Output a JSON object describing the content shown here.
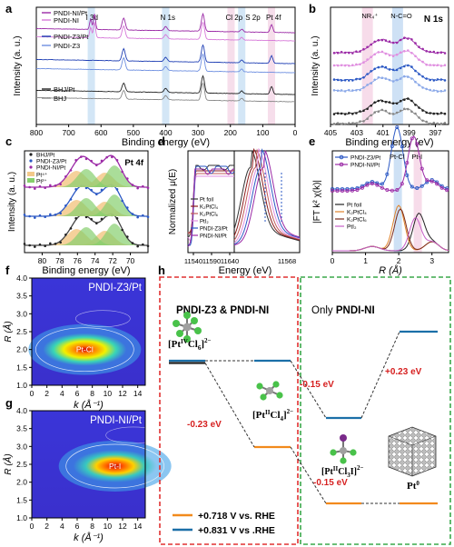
{
  "chart_data": [
    {
      "panel": "a",
      "type": "line",
      "xlabel": "Binding energy (eV)",
      "ylabel": "Intensity (a. u.)",
      "xlim": [
        800,
        0
      ],
      "xticks": [
        800,
        700,
        600,
        500,
        400,
        300,
        200,
        100,
        0
      ],
      "peak_labels": [
        "I 3d",
        "N 1s",
        "Cl 2p",
        "S 2p",
        "Pt 4f"
      ],
      "peak_positions": [
        630,
        400,
        198,
        165,
        73
      ],
      "series": [
        {
          "name": "PNDI-NI/Pt",
          "color": "#9b2aa6"
        },
        {
          "name": "PNDI-NI",
          "color": "#d77ad9"
        },
        {
          "name": "PNDI-Z3/Pt",
          "color": "#1f3fb4"
        },
        {
          "name": "PNDI-Z3",
          "color": "#6e8fe0"
        },
        {
          "name": "BHJ/Pt",
          "color": "#222222"
        },
        {
          "name": "BHJ",
          "color": "#888888"
        }
      ]
    },
    {
      "panel": "b",
      "type": "line",
      "title": "N 1s",
      "xlabel": "Binding energy (eV)",
      "ylabel": "Intensity (a. u.)",
      "xlim": [
        405,
        396
      ],
      "xticks": [
        405,
        403,
        401,
        399,
        397
      ],
      "peak_labels": [
        "NR₄⁺",
        "N-C=O"
      ],
      "peak_positions": [
        402.0,
        399.7
      ]
    },
    {
      "panel": "c",
      "type": "line",
      "title": "Pt 4f",
      "xlabel": "Binding energy (eV)",
      "ylabel": "Intensity (a. u.)",
      "xlim": [
        82,
        68
      ],
      "xticks": [
        80,
        78,
        76,
        74,
        72,
        70
      ],
      "series": [
        {
          "name": "BHJ/Pt",
          "color": "#222222"
        },
        {
          "name": "PNDI-Z3/Pt",
          "color": "#2b58c4"
        },
        {
          "name": "PNDI-NI/Pt",
          "color": "#9b2aa6"
        },
        {
          "name": "Pt⁴⁺",
          "color": "#f3c98a"
        },
        {
          "name": "Pt²⁺",
          "color": "#86cf6d"
        }
      ]
    },
    {
      "panel": "d",
      "type": "line",
      "xlabel": "Energy (eV)",
      "ylabel": "Normalized μ(E)",
      "xticks_left": [
        11540,
        11590,
        11640
      ],
      "xticks_right": [
        11568
      ],
      "series": [
        {
          "name": "Pt foil",
          "color": "#333333"
        },
        {
          "name": "K₂PtCl₄",
          "color": "#8a1b1b"
        },
        {
          "name": "K₂PtCl₆",
          "color": "#c25a5a"
        },
        {
          "name": "PtI₂",
          "color": "#e08fe0"
        },
        {
          "name": "PNDI-Z3/Pt",
          "color": "#2b58c4"
        },
        {
          "name": "PNDI-NI/Pt",
          "color": "#9b2aa6"
        }
      ]
    },
    {
      "panel": "e",
      "type": "line",
      "xlabel": "R (Å)",
      "ylabel": "|FT k² χ(k)|",
      "xlim": [
        0,
        3.5
      ],
      "xticks": [
        0,
        1,
        2,
        3
      ],
      "peak_labels": [
        "Pt-Cl",
        "Pt-I"
      ],
      "series": [
        {
          "name": "PNDI-Z3/Pt",
          "color": "#2b58c4"
        },
        {
          "name": "PNDI-NI/Pt",
          "color": "#9b2aa6"
        },
        {
          "name": "Pt foil",
          "color": "#222222"
        },
        {
          "name": "K₂PtCl₄",
          "color": "#e0832a"
        },
        {
          "name": "K₂PtCl₆",
          "color": "#7a2a1a"
        },
        {
          "name": "PtI₂",
          "color": "#c65fc7"
        }
      ]
    },
    {
      "panel": "f",
      "type": "heatmap",
      "title": "PNDI-Z3/Pt",
      "xlabel": "k (Å⁻¹)",
      "ylabel": "R (Å)",
      "xlim": [
        0,
        15
      ],
      "ylim": [
        1.0,
        4.0
      ],
      "xticks": [
        0,
        2,
        4,
        6,
        8,
        10,
        12,
        14
      ],
      "yticks": [
        1.0,
        1.5,
        2.0,
        2.5,
        3.0,
        3.5,
        4.0
      ],
      "peak": {
        "label": "Pt-Cl",
        "k": 7.0,
        "R": 2.0
      }
    },
    {
      "panel": "g",
      "type": "heatmap",
      "title": "PNDI-NI/Pt",
      "xlabel": "k (Å⁻¹)",
      "ylabel": "R (Å)",
      "xlim": [
        0,
        15
      ],
      "ylim": [
        1.0,
        4.0
      ],
      "xticks": [
        0,
        2,
        4,
        6,
        8,
        10,
        12,
        14
      ],
      "yticks": [
        1.0,
        1.5,
        2.0,
        2.5,
        3.0,
        3.5,
        4.0
      ],
      "peak": {
        "label": "Pt-I",
        "k": 11.0,
        "R": 2.45
      }
    }
  ],
  "panel_h": {
    "left_title": "PNDI-Z3 & PNDI-NI",
    "right_title_prefix": "Only ",
    "right_title_bold": "PNDI-NI",
    "species": {
      "s1_main": "[Pt",
      "s1_ox": "IV",
      "s1_rest": "Cl",
      "s1_sub": "6",
      "s1_end": "]",
      "s1_charge": "2−",
      "s2_main": "[Pt",
      "s2_ox": "II",
      "s2_rest": "Cl",
      "s2_sub": "4",
      "s2_end": "]",
      "s2_charge": "2−",
      "s3_main": "[Pt",
      "s3_ox": "II",
      "s3_rest": "Cl",
      "s3_sub": "3",
      "s3_end": "I]",
      "s3_charge": "2−",
      "s4_main": "Pt",
      "s4_ox": "0"
    },
    "energies": {
      "e1": "-0.23 eV",
      "e2": "-0.15 eV",
      "e3": "+0.23 eV",
      "e4": "-0.15 eV"
    },
    "legend": [
      {
        "label": "+0.718 V vs. RHE",
        "color": "#f28a1c"
      },
      {
        "label": "+0.831 V vs .RHE",
        "color": "#1b6fa8"
      }
    ],
    "colors": {
      "left_box": "#e03030",
      "right_box": "#3aa84a",
      "energy_text": "#d62020"
    }
  },
  "panel_letters": [
    "a",
    "b",
    "c",
    "d",
    "e",
    "f",
    "g",
    "h"
  ]
}
